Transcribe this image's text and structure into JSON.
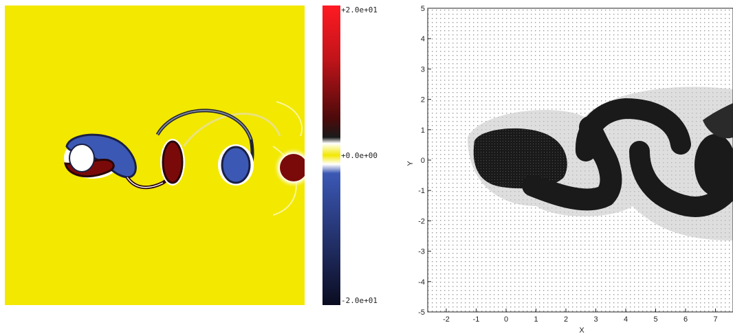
{
  "left_panel": {
    "colorbar": {
      "max_label": "+2.0e+01",
      "mid_label": "+0.0e+00",
      "min_label": "-2.0e+01",
      "colors": {
        "positive_high": "#e8141c",
        "positive_low": "#3a0a0a",
        "zero": "#f2e800",
        "negative_low": "#1a1f44",
        "negative_high": "#3b58b4"
      }
    },
    "background_color": "#f2e800"
  },
  "right_panel": {
    "xlabel": "X",
    "ylabel": "Y",
    "xticks": [
      "-2",
      "-1",
      "0",
      "1",
      "2",
      "3",
      "4",
      "5",
      "6",
      "7"
    ],
    "yticks": [
      "5",
      "4",
      "3",
      "2",
      "1",
      "0",
      "-1",
      "-2",
      "-3",
      "-4",
      "-5"
    ]
  }
}
